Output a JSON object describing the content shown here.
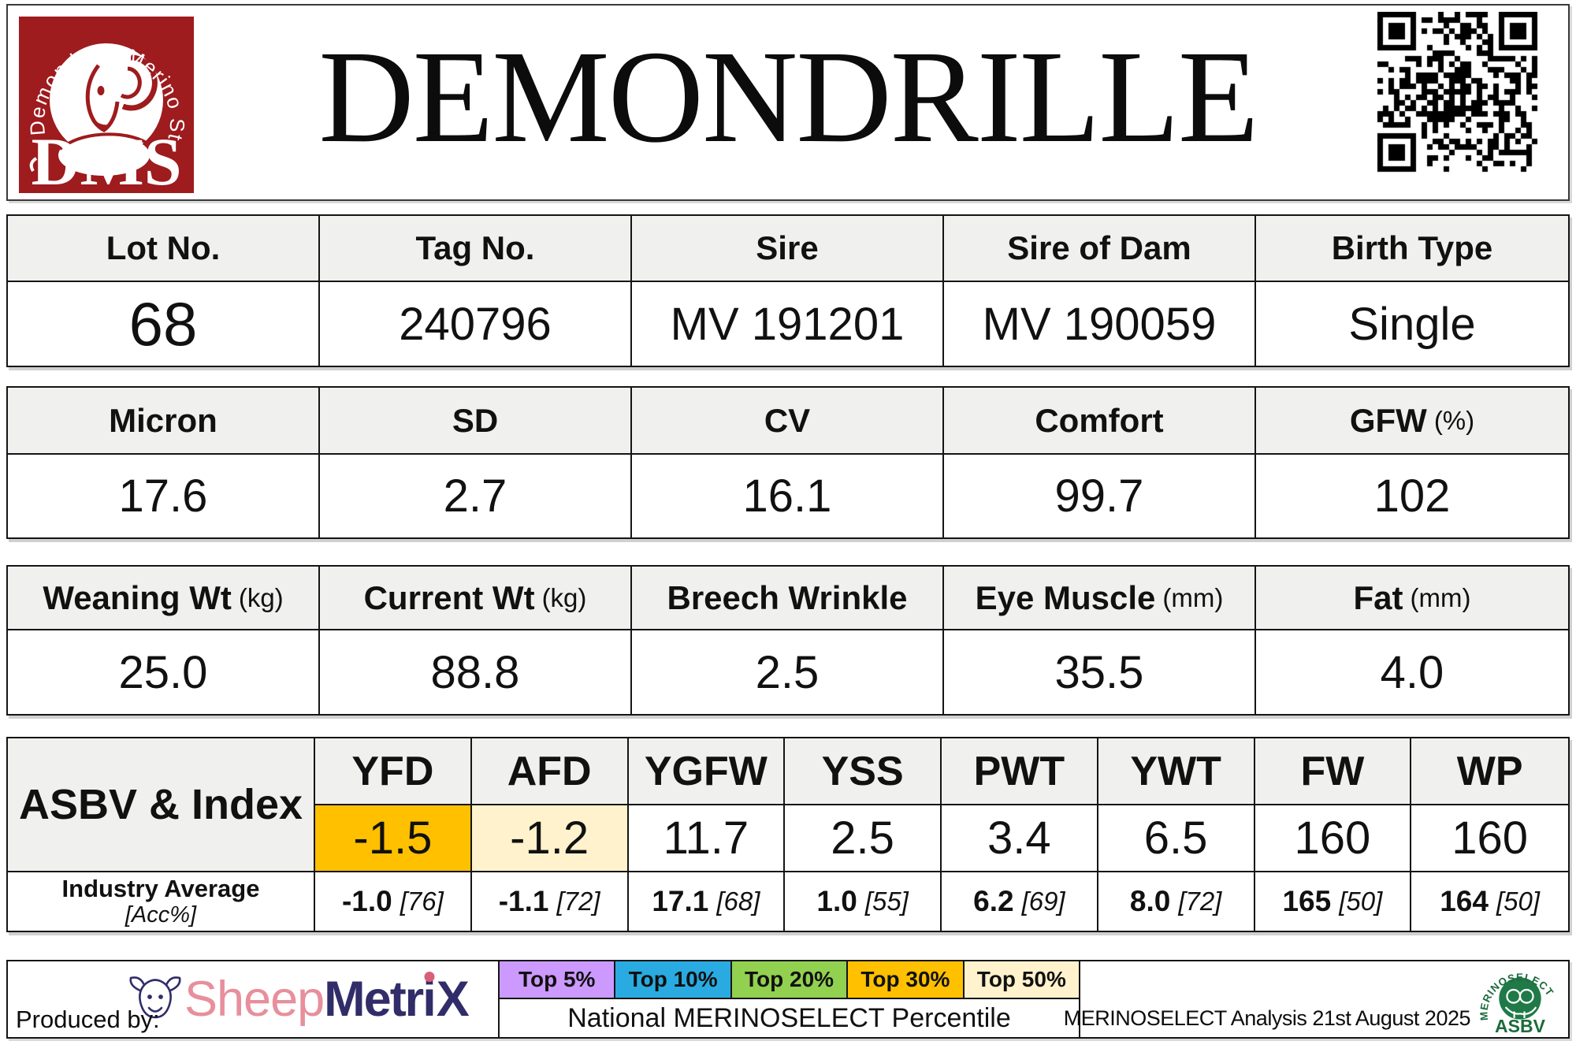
{
  "header": {
    "title": "DEMONDRILLE",
    "stud_logo": {
      "arc_text": "Demondrille Merino Stud",
      "initials": "DMS",
      "bg_color": "#9e1b1e"
    }
  },
  "tables": [
    {
      "headers": [
        {
          "text": "Lot No.",
          "unit": ""
        },
        {
          "text": "Tag No.",
          "unit": ""
        },
        {
          "text": "Sire",
          "unit": ""
        },
        {
          "text": "Sire of Dam",
          "unit": ""
        },
        {
          "text": "Birth Type",
          "unit": ""
        }
      ],
      "values": [
        "68",
        "240796",
        "MV 191201",
        "MV 190059",
        "Single"
      ]
    },
    {
      "headers": [
        {
          "text": "Micron",
          "unit": ""
        },
        {
          "text": "SD",
          "unit": ""
        },
        {
          "text": "CV",
          "unit": ""
        },
        {
          "text": "Comfort",
          "unit": ""
        },
        {
          "text": "GFW",
          "unit": "(%)"
        }
      ],
      "values": [
        "17.6",
        "2.7",
        "16.1",
        "99.7",
        "102"
      ]
    },
    {
      "headers": [
        {
          "text": "Weaning Wt",
          "unit": "(kg)"
        },
        {
          "text": "Current Wt",
          "unit": "(kg)"
        },
        {
          "text": "Breech Wrinkle",
          "unit": ""
        },
        {
          "text": "Eye Muscle",
          "unit": "(mm)"
        },
        {
          "text": "Fat",
          "unit": "(mm)"
        }
      ],
      "values": [
        "25.0",
        "88.8",
        "2.5",
        "35.5",
        "4.0"
      ]
    }
  ],
  "asbv": {
    "label": "ASBV & Index",
    "industry_label": "Industry Average",
    "industry_sublabel": "[Acc%]",
    "columns": [
      {
        "trait": "YFD",
        "value": "-1.5",
        "highlight": "#FFC000",
        "industry_avg": "-1.0",
        "accuracy": "[76]"
      },
      {
        "trait": "AFD",
        "value": "-1.2",
        "highlight": "#FFF2CC",
        "industry_avg": "-1.1",
        "accuracy": "[72]"
      },
      {
        "trait": "YGFW",
        "value": "11.7",
        "highlight": "",
        "industry_avg": "17.1",
        "accuracy": "[68]"
      },
      {
        "trait": "YSS",
        "value": "2.5",
        "highlight": "",
        "industry_avg": "1.0",
        "accuracy": "[55]"
      },
      {
        "trait": "PWT",
        "value": "3.4",
        "highlight": "",
        "industry_avg": "6.2",
        "accuracy": "[69]"
      },
      {
        "trait": "YWT",
        "value": "6.5",
        "highlight": "",
        "industry_avg": "8.0",
        "accuracy": "[72]"
      },
      {
        "trait": "FW",
        "value": "160",
        "highlight": "",
        "industry_avg": "165",
        "accuracy": "[50]"
      },
      {
        "trait": "WP",
        "value": "160",
        "highlight": "",
        "industry_avg": "164",
        "accuracy": "[50]"
      }
    ]
  },
  "footer": {
    "produced_by": "Produced by:",
    "sheepmetrix": {
      "word1": "Sheep",
      "word2_a": "Metr",
      "word2_i": "i",
      "word2_b": "X",
      "pink": "#e78f9c",
      "navy": "#312d69"
    },
    "percentile_legend": [
      {
        "label": "Top 5%",
        "color": "#CC99FF"
      },
      {
        "label": "Top 10%",
        "color": "#29ABE2"
      },
      {
        "label": "Top 20%",
        "color": "#92D050"
      },
      {
        "label": "Top 30%",
        "color": "#FFC000"
      },
      {
        "label": "Top 50%",
        "color": "#FFF2CC"
      }
    ],
    "legend_caption": "National MERINOSELECT Percentile",
    "analysis_note": "MERINOSELECT Analysis 21st August 2025",
    "merinoselect_logo": {
      "arc_text": "MERINOSELECT",
      "name": "ASBV",
      "green": "#1c6b3c"
    }
  },
  "colors": {
    "table_header_bg": "#F0F0EE",
    "highlight_top30": "#FFC000",
    "highlight_top50": "#FFF2CC",
    "stud_red": "#9e1b1e",
    "merino_green": "#1c6b3c"
  }
}
